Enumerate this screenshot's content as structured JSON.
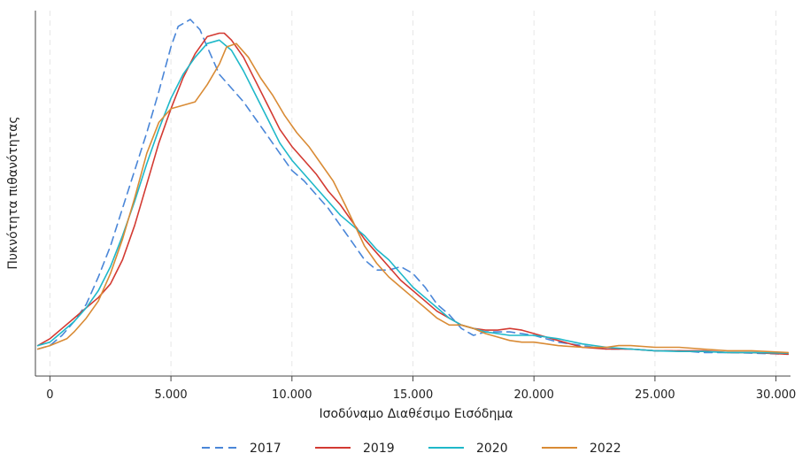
{
  "chart_data": {
    "type": "line",
    "xlabel": "Ισοδύναμο Διαθέσιμο Εισόδημα",
    "ylabel": "Πυκνότητα πιθανότητας",
    "xlim": [
      -600,
      30600
    ],
    "ylim": [
      0,
      1
    ],
    "xticks": [
      0,
      5000,
      10000,
      15000,
      20000,
      25000,
      30000
    ],
    "xtick_labels": [
      "0",
      "5.000",
      "10.000",
      "15.000",
      "20.000",
      "25.000",
      "30.000"
    ],
    "grid": "vertical dashed",
    "legend": "bottom",
    "series": [
      {
        "name": "2017",
        "color": "#4a86d8",
        "dash": "dashed",
        "x": [
          -500,
          0,
          500,
          1000,
          1500,
          2000,
          2500,
          3000,
          3500,
          4000,
          4500,
          5000,
          5300,
          5800,
          6200,
          6500,
          7000,
          7500,
          8000,
          8500,
          9000,
          9500,
          10000,
          10500,
          11000,
          11500,
          12000,
          12500,
          13000,
          13500,
          14000,
          14500,
          15000,
          15500,
          16000,
          16500,
          17000,
          17500,
          18000,
          18500,
          19000,
          20000,
          21000,
          22000,
          23000,
          24000,
          25000,
          26000,
          27000,
          28000,
          29000,
          30500
        ],
        "y": [
          0.04,
          0.05,
          0.08,
          0.12,
          0.17,
          0.25,
          0.34,
          0.45,
          0.56,
          0.67,
          0.79,
          0.92,
          0.98,
          1.0,
          0.97,
          0.92,
          0.84,
          0.8,
          0.76,
          0.71,
          0.66,
          0.61,
          0.56,
          0.53,
          0.49,
          0.45,
          0.4,
          0.35,
          0.3,
          0.27,
          0.27,
          0.28,
          0.26,
          0.22,
          0.17,
          0.14,
          0.1,
          0.08,
          0.09,
          0.09,
          0.09,
          0.08,
          0.06,
          0.05,
          0.04,
          0.04,
          0.035,
          0.035,
          0.03,
          0.03,
          0.028,
          0.025
        ]
      },
      {
        "name": "2019",
        "color": "#d33a32",
        "dash": "solid",
        "x": [
          -500,
          0,
          500,
          1000,
          1500,
          2000,
          2500,
          3000,
          3500,
          4000,
          4500,
          5000,
          5500,
          6000,
          6500,
          7000,
          7200,
          7500,
          8000,
          8500,
          9000,
          9500,
          10000,
          10500,
          11000,
          11500,
          12000,
          12500,
          13000,
          13500,
          14000,
          14500,
          15000,
          15500,
          16000,
          16500,
          17000,
          17500,
          18000,
          18500,
          19000,
          19500,
          20000,
          21000,
          22000,
          23000,
          24000,
          25000,
          26000,
          27000,
          28000,
          29000,
          30500
        ],
        "y": [
          0.05,
          0.07,
          0.1,
          0.13,
          0.16,
          0.19,
          0.23,
          0.3,
          0.4,
          0.52,
          0.64,
          0.74,
          0.83,
          0.9,
          0.95,
          0.96,
          0.96,
          0.94,
          0.89,
          0.82,
          0.75,
          0.68,
          0.63,
          0.59,
          0.55,
          0.5,
          0.46,
          0.41,
          0.36,
          0.32,
          0.28,
          0.24,
          0.21,
          0.18,
          0.15,
          0.13,
          0.11,
          0.1,
          0.095,
          0.095,
          0.1,
          0.095,
          0.085,
          0.065,
          0.045,
          0.04,
          0.04,
          0.035,
          0.035,
          0.035,
          0.03,
          0.03,
          0.025
        ]
      },
      {
        "name": "2020",
        "color": "#1fb8c9",
        "dash": "solid",
        "x": [
          -500,
          0,
          500,
          1000,
          1500,
          2000,
          2500,
          3000,
          3500,
          4000,
          4500,
          5000,
          5500,
          6000,
          6500,
          7000,
          7500,
          8000,
          8500,
          9000,
          9500,
          10000,
          10500,
          11000,
          11500,
          12000,
          12500,
          13000,
          13500,
          14000,
          14500,
          15000,
          15500,
          16000,
          16500,
          17000,
          17500,
          18000,
          19000,
          20000,
          21000,
          22000,
          23000,
          24000,
          25000,
          26000,
          27000,
          28000,
          29000,
          30500
        ],
        "y": [
          0.05,
          0.06,
          0.09,
          0.12,
          0.16,
          0.21,
          0.28,
          0.37,
          0.47,
          0.58,
          0.68,
          0.77,
          0.84,
          0.89,
          0.93,
          0.94,
          0.91,
          0.85,
          0.78,
          0.71,
          0.64,
          0.59,
          0.55,
          0.51,
          0.47,
          0.43,
          0.4,
          0.37,
          0.33,
          0.3,
          0.26,
          0.22,
          0.19,
          0.16,
          0.13,
          0.11,
          0.1,
          0.09,
          0.08,
          0.08,
          0.07,
          0.055,
          0.045,
          0.04,
          0.035,
          0.033,
          0.033,
          0.03,
          0.03,
          0.028
        ]
      },
      {
        "name": "2022",
        "color": "#d98b35",
        "dash": "solid",
        "x": [
          -500,
          0,
          700,
          1000,
          1500,
          2000,
          2500,
          3000,
          3500,
          4000,
          4500,
          5000,
          5500,
          6000,
          6500,
          7000,
          7300,
          7700,
          8200,
          8700,
          9200,
          9700,
          10200,
          10700,
          11200,
          11700,
          12200,
          12600,
          13000,
          13500,
          14000,
          14500,
          15000,
          15500,
          16000,
          16500,
          17000,
          17500,
          18000,
          19000,
          19500,
          20000,
          21000,
          22000,
          23000,
          23500,
          24000,
          25000,
          26000,
          27000,
          28000,
          29000,
          30500
        ],
        "y": [
          0.04,
          0.05,
          0.07,
          0.09,
          0.13,
          0.18,
          0.26,
          0.36,
          0.48,
          0.61,
          0.7,
          0.74,
          0.75,
          0.76,
          0.81,
          0.87,
          0.92,
          0.93,
          0.89,
          0.83,
          0.78,
          0.72,
          0.67,
          0.63,
          0.58,
          0.53,
          0.46,
          0.4,
          0.34,
          0.29,
          0.25,
          0.22,
          0.19,
          0.16,
          0.13,
          0.11,
          0.11,
          0.1,
          0.085,
          0.065,
          0.06,
          0.06,
          0.05,
          0.045,
          0.045,
          0.05,
          0.05,
          0.045,
          0.045,
          0.04,
          0.035,
          0.035,
          0.03
        ]
      }
    ]
  }
}
